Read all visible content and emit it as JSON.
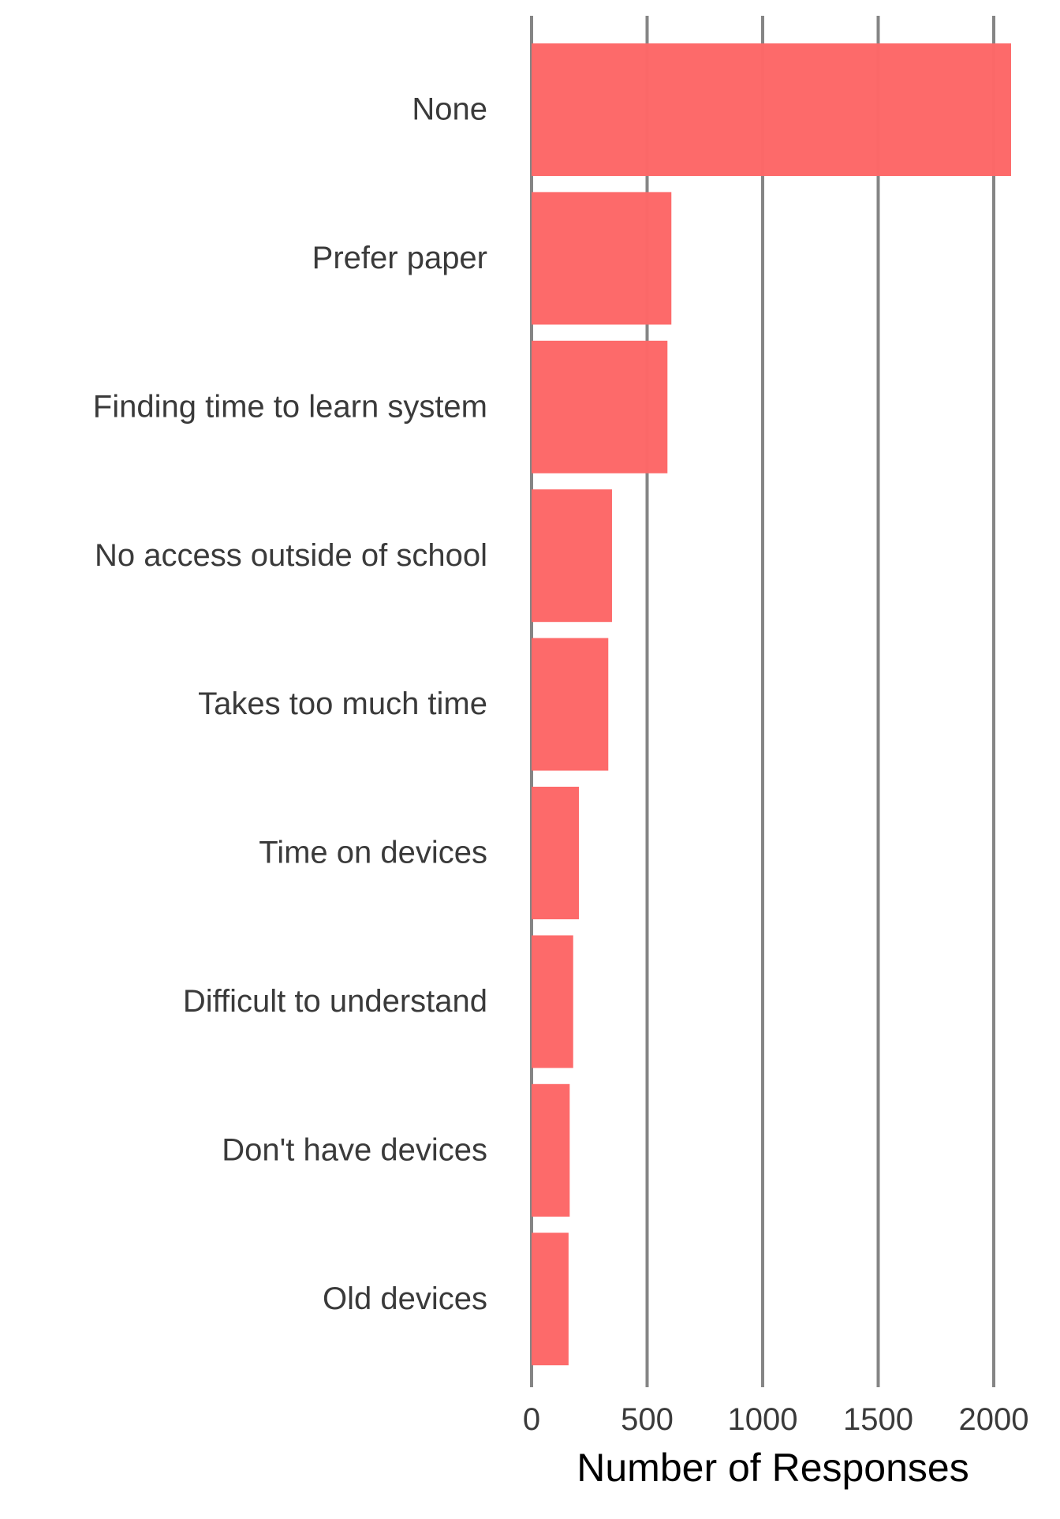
{
  "chart_data": {
    "type": "bar",
    "orientation": "horizontal",
    "categories": [
      "None",
      "Prefer paper",
      "Finding time to learn system",
      "No access outside of school",
      "Takes too much time",
      "Time on devices",
      "Difficult to understand",
      "Don't have devices",
      "Old devices"
    ],
    "values": [
      2075,
      605,
      588,
      348,
      332,
      205,
      180,
      165,
      160
    ],
    "title": "",
    "xlabel": "Number of Responses",
    "ylabel": "",
    "xlim": [
      0,
      2150
    ],
    "xticks": [
      0,
      500,
      1000,
      1500,
      2000
    ],
    "xtick_labels": [
      "0",
      "500",
      "1000",
      "1500",
      "2000"
    ],
    "grid": "vertical major lines",
    "legend": "none",
    "bar_color": "#fd6767"
  }
}
